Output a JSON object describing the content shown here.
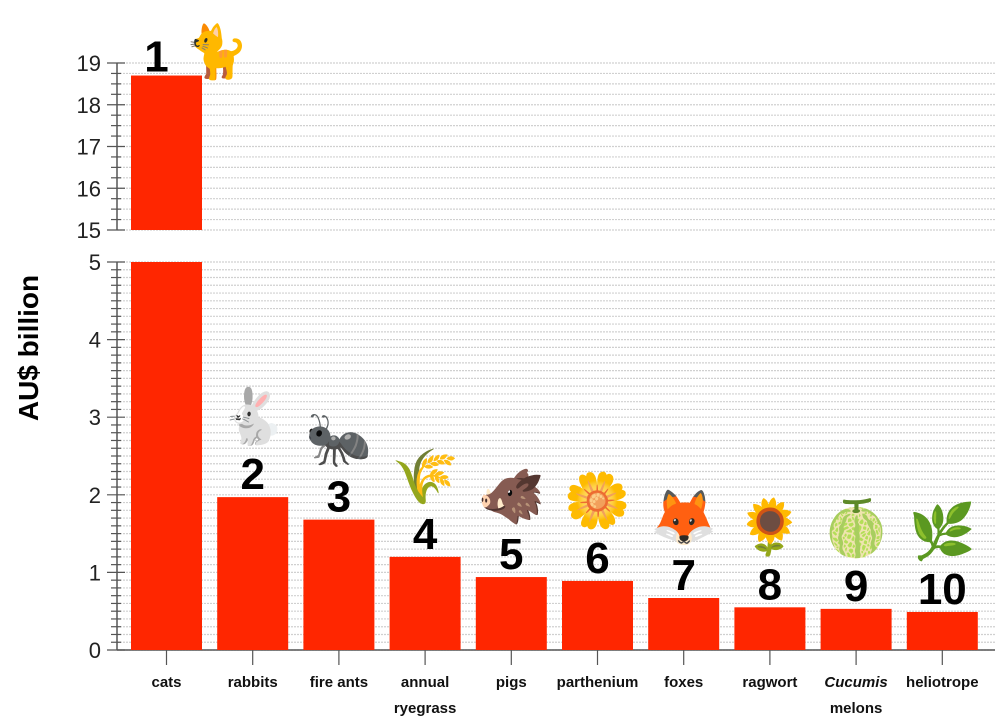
{
  "chart_data": {
    "type": "bar",
    "ylabel": "AU$ billion",
    "axis_break": {
      "lower_range": [
        0,
        5
      ],
      "upper_range": [
        15,
        19
      ]
    },
    "yticks_lower": [
      "0",
      "1",
      "2",
      "3",
      "4",
      "5"
    ],
    "yticks_upper": [
      "15",
      "16",
      "17",
      "18",
      "19"
    ],
    "grid": true,
    "bar_color": "#ff2600",
    "categories": [
      {
        "label": "cats",
        "label2": "",
        "italic": "",
        "rank": "1",
        "icon": "cat-icon",
        "value": 18.7
      },
      {
        "label": "rabbits",
        "label2": "",
        "italic": "",
        "rank": "2",
        "icon": "rabbit-icon",
        "value": 1.97
      },
      {
        "label": "fire ants",
        "label2": "",
        "italic": "",
        "rank": "3",
        "icon": "ant-icon",
        "value": 1.68
      },
      {
        "label": "annual",
        "label2": "ryegrass",
        "italic": "",
        "rank": "4",
        "icon": "ryegrass-icon",
        "value": 1.2
      },
      {
        "label": "pigs",
        "label2": "",
        "italic": "",
        "rank": "5",
        "icon": "pig-icon",
        "value": 0.94
      },
      {
        "label": "parthenium",
        "label2": "",
        "italic": "",
        "rank": "6",
        "icon": "flower-icon",
        "value": 0.89
      },
      {
        "label": "foxes",
        "label2": "",
        "italic": "",
        "rank": "7",
        "icon": "fox-icon",
        "value": 0.67
      },
      {
        "label": "ragwort",
        "label2": "",
        "italic": "",
        "rank": "8",
        "icon": "ragwort-icon",
        "value": 0.55
      },
      {
        "label": "",
        "label2": "melons",
        "italic": "Cucumis",
        "rank": "9",
        "icon": "melon-icon",
        "value": 0.53
      },
      {
        "label": "heliotrope",
        "label2": "",
        "italic": "",
        "rank": "10",
        "icon": "heliotrope-icon",
        "value": 0.49
      }
    ]
  }
}
